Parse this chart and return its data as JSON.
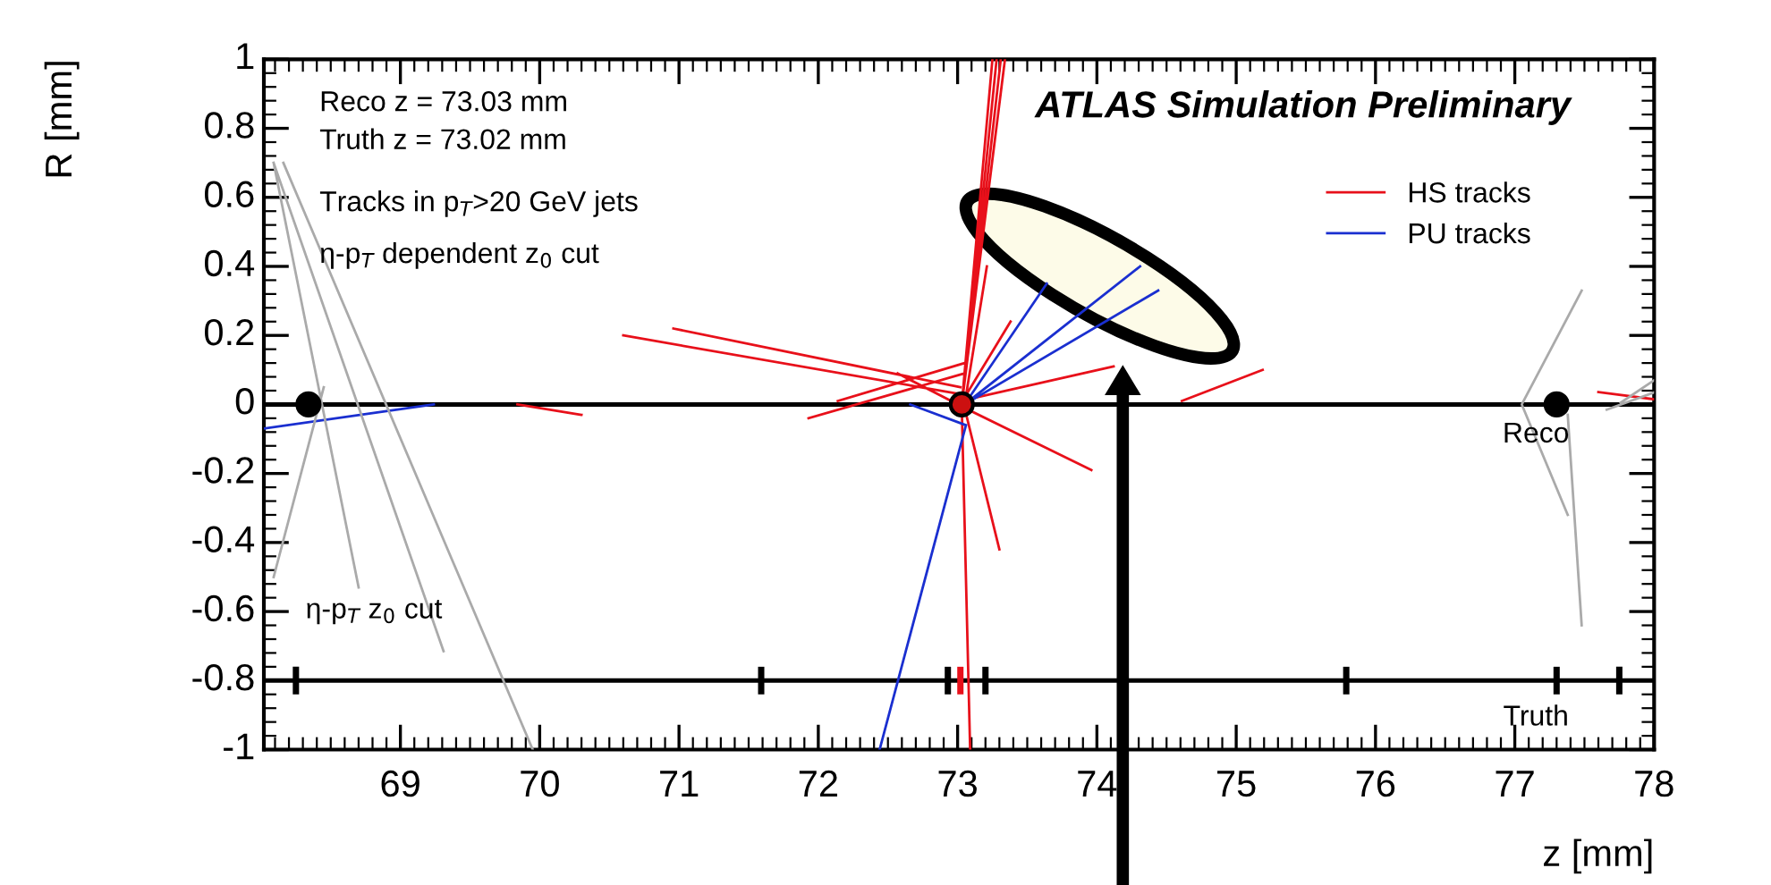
{
  "chart_data": {
    "type": "line",
    "title": "ATLAS Simulation Preliminary",
    "xlabel": "z [mm]",
    "ylabel": "R [mm]",
    "xlim": [
      68.02,
      78
    ],
    "ylim": [
      -1,
      1
    ],
    "xticks": [
      69,
      70,
      71,
      72,
      73,
      74,
      75,
      76,
      77,
      78
    ],
    "yticks": [
      -1,
      -0.8,
      -0.6,
      -0.4,
      -0.2,
      0,
      0.2,
      0.4,
      0.6,
      0.8,
      1
    ],
    "grid": false,
    "legend": "top right",
    "ref_lines": [
      {
        "axis": "y",
        "value": 0,
        "color": "#000000"
      },
      {
        "axis": "y",
        "value": -0.8,
        "color": "#000000"
      }
    ],
    "annotations": [
      "Reco z = 73.03 mm",
      "Truth z = 73.02 mm",
      "Tracks in p$_{T}$>20 GeV jets",
      "η-p$_{T}$ dependent z$_{0}$ cut",
      "η-p$_{T}$ z$_{0}$ cut",
      "Reco",
      "Truth"
    ],
    "series": [
      {
        "name": "HS tracks",
        "type": "line",
        "color": "#e8101a",
        "x": [
          73.03,
          73.28,
          null,
          73.03,
          73.31,
          null,
          73.03,
          73.34,
          null,
          73.03,
          73.25,
          null,
          70.6,
          73.02,
          null,
          70.96,
          73.02,
          null,
          71.93,
          73.05,
          null,
          72.14,
          73.05,
          null,
          69.84,
          70.3,
          null,
          73.02,
          73.38,
          null,
          73.02,
          74.12,
          null,
          74.61,
          75.19,
          null,
          73.05,
          73.96,
          null,
          73.05,
          73.3,
          null,
          73.03,
          73.09,
          null,
          73.05,
          73.21,
          null,
          72.57,
          73.05,
          null,
          77.6,
          78
        ],
        "values": [
          0,
          1,
          null,
          0,
          1,
          null,
          0,
          1,
          null,
          0,
          1,
          null,
          0.2,
          0.03,
          null,
          0.22,
          0.05,
          null,
          -0.04,
          0.09,
          null,
          0.01,
          0.12,
          null,
          0.0,
          -0.03,
          null,
          0,
          0.24,
          null,
          0.01,
          0.11,
          null,
          0.01,
          0.1,
          null,
          -0.01,
          -0.19,
          null,
          -0.01,
          -0.42,
          null,
          -0.01,
          -1.0,
          null,
          0,
          0.4,
          null,
          0.09,
          -0.01,
          null,
          0.036,
          0.015
        ]
      },
      {
        "name": "PU tracks",
        "type": "line",
        "color": "#1a2fd0",
        "x": [
          73.05,
          74.31,
          null,
          73.05,
          74.44,
          null,
          73.05,
          73.64,
          null,
          73.06,
          72.44,
          null,
          68.02,
          69.24,
          null,
          72.66,
          73.06
        ],
        "values": [
          0,
          0.4,
          null,
          0,
          0.33,
          null,
          0,
          0.35,
          null,
          -0.06,
          -1.0,
          null,
          -0.07,
          0,
          null,
          0,
          -0.06
        ]
      },
      {
        "type": "line",
        "color": "#aaaaaa",
        "x": [
          68.09,
          68.7,
          null,
          68.09,
          69.31,
          null,
          68.16,
          69.95,
          null,
          68.09,
          68.45,
          null,
          77.48,
          77.05,
          77.38,
          null,
          77.38,
          77.48,
          null,
          77.76,
          78,
          null,
          77.66,
          78
        ],
        "values": [
          0.7,
          -0.53,
          null,
          0.7,
          -0.715,
          null,
          0.7,
          -1.0,
          null,
          -0.5,
          0.05,
          null,
          0.33,
          0,
          -0.32,
          null,
          -0.03,
          -0.64,
          null,
          0.005,
          0.07,
          null,
          -0.015,
          0.035
        ]
      },
      {
        "type": "scatter",
        "marker": "circle",
        "color": "#000000",
        "x": [
          68.34,
          77.3
        ],
        "values": [
          0,
          0
        ]
      },
      {
        "type": "scatter",
        "marker": "circle",
        "color": "#cc1010",
        "x": [
          73.03
        ],
        "values": [
          0
        ]
      },
      {
        "type": "bar",
        "color": "#000000",
        "x": [
          68.25,
          71.59,
          72.93,
          73.2,
          75.79,
          77.3,
          77.75
        ],
        "base": [
          -0.84,
          -0.84,
          -0.84,
          -0.84,
          -0.84,
          -0.84,
          -0.84
        ],
        "values": [
          0.08,
          0.08,
          0.08,
          0.08,
          0.08,
          0.08,
          0.08
        ]
      },
      {
        "type": "bar",
        "color": "#e8101a",
        "x": [
          73.02
        ],
        "base": [
          -0.84
        ],
        "values": [
          0.08
        ]
      }
    ]
  }
}
